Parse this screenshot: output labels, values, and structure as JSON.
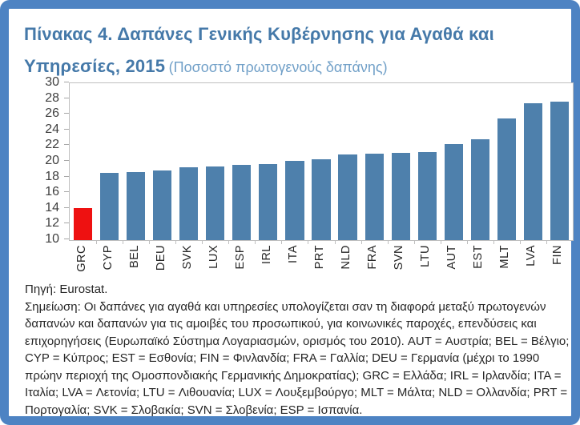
{
  "header": {
    "title_line1": "Πίνακας 4.  Δαπάνες Γενικής Κυβέρνησης για Αγαθά και",
    "title_line2_bold": "Υπηρεσίες, 2015",
    "subtitle": "(Ποσοστό πρωτογενούς δαπάνης)"
  },
  "chart_data": {
    "type": "bar",
    "title": "Πίνακας 4. Δαπάνες Γενικής Κυβέρνησης για Αγαθά και Υπηρεσίες, 2015",
    "subtitle": "(Ποσοστό πρωτογενούς δαπάνης)",
    "categories": [
      "GRC",
      "CYP",
      "BEL",
      "DEU",
      "SVK",
      "LUX",
      "ESP",
      "IRL",
      "ITA",
      "PRT",
      "NLD",
      "FRA",
      "SVN",
      "LTU",
      "AUT",
      "EST",
      "MLT",
      "LVA",
      "FIN"
    ],
    "values": [
      14.1,
      18.6,
      18.7,
      18.9,
      19.3,
      19.4,
      19.6,
      19.7,
      20.1,
      20.3,
      20.9,
      21.0,
      21.1,
      21.2,
      22.2,
      22.9,
      25.5,
      27.4,
      27.7
    ],
    "xlabel": "",
    "ylabel": "",
    "ylim": [
      10,
      30
    ],
    "yticks": [
      10,
      12,
      14,
      16,
      18,
      20,
      22,
      24,
      26,
      28,
      30
    ],
    "grid": false,
    "legend": "none",
    "highlight_category": "GRC",
    "bar_color": "#4e80ac",
    "highlight_color": "#ee1111"
  },
  "footer": {
    "source": "Πηγή: Eurostat.",
    "note": "Σημείωση: Οι δαπάνες για αγαθά και υπηρεσίες υπολογίζεται σαν τη διαφορά μεταξύ πρωτογενών δαπανών και δαπανών για τις αμοιβές του προσωπικού, για κοινωνικές παροχές, επενδύσεις και επιχορηγήσεις (Ευρωπαϊκό Σύστημα Λογαριασμών, ορισμός του 2010). AUT = Αυστρία; BEL = Βέλγιο; CYP = Κύπρος; EST = Εσθονία; FIN = Φινλανδία; FRA = Γαλλία; DEU = Γερμανία (μέχρι το 1990 πρώην περιοχή της Ομοσπονδιακής Γερμανικής Δημοκρατίας); GRC = Ελλάδα; IRL = Ιρλανδία; ITA = Ιταλία; LVA = Λετονία; LTU = Λιθουανία; LUX = Λουξεμβούργο; MLT = Μάλτα; NLD = Ολλανδία; PRT = Πορτογαλία; SVK = Σλοβακία; SVN = Σλοβενία; ESP = Ισπανία."
  },
  "colors": {
    "frame_border": "#4d83c3",
    "title_text": "#4579a9",
    "subtitle_text": "#71a0c8",
    "axis_text": "#3f3f3f",
    "plot_border": "#bfbfbf"
  }
}
